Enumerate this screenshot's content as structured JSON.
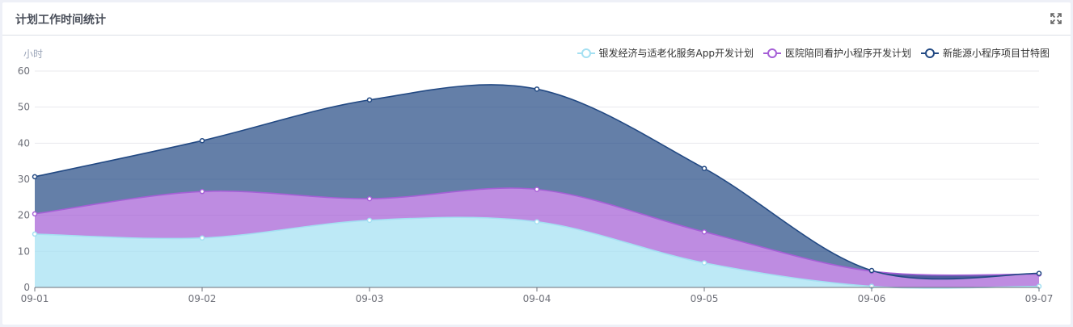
{
  "card": {
    "title": "计划工作时间统计",
    "expand_icon": "expand-icon"
  },
  "chart_data": {
    "type": "area",
    "stacked": true,
    "smooth": true,
    "ylabel": "小时",
    "ylim": [
      0,
      60
    ],
    "yticks": [
      0,
      10,
      20,
      30,
      40,
      50,
      60
    ],
    "x": [
      "09-01",
      "09-02",
      "09-03",
      "09-04",
      "09-05",
      "09-06",
      "09-07"
    ],
    "legend_position": "top-right",
    "grid": "horizontal",
    "series": [
      {
        "name": "银发经济与适老化服务App开发计划",
        "values": [
          14.8,
          13.7,
          18.6,
          18.2,
          6.8,
          0.3,
          0.3
        ],
        "color": "#a4e0f2"
      },
      {
        "name": "医院陪同看护小程序开发计划",
        "values": [
          5.6,
          12.9,
          6.0,
          9.0,
          8.6,
          4.2,
          3.4
        ],
        "color": "#a55fd6"
      },
      {
        "name": "新能源小程序项目甘特图",
        "values": [
          10.3,
          14.1,
          27.4,
          27.8,
          17.6,
          0.2,
          0.2
        ],
        "color": "#224983"
      }
    ]
  }
}
